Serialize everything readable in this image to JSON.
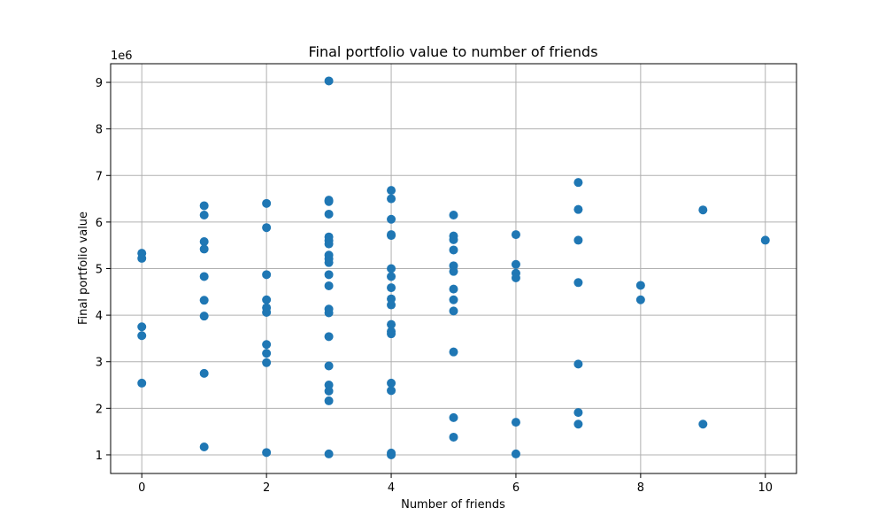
{
  "chart_data": {
    "type": "scatter",
    "title": "Final portfolio value to number of friends",
    "xlabel": "Number of friends",
    "ylabel": "Final portfolio value",
    "y_scale_label": "1e6",
    "xlim": [
      -0.5,
      10.5
    ],
    "ylim": [
      0.6,
      9.4
    ],
    "xticks": [
      0,
      2,
      4,
      6,
      8,
      10
    ],
    "yticks": [
      1,
      2,
      3,
      4,
      5,
      6,
      7,
      8,
      9
    ],
    "grid": true,
    "marker_color": "#1f77b4",
    "points": [
      {
        "x": 0,
        "y": 5.33
      },
      {
        "x": 0,
        "y": 5.22
      },
      {
        "x": 0,
        "y": 3.75
      },
      {
        "x": 0,
        "y": 3.56
      },
      {
        "x": 0,
        "y": 2.54
      },
      {
        "x": 1,
        "y": 6.35
      },
      {
        "x": 1,
        "y": 6.15
      },
      {
        "x": 1,
        "y": 5.58
      },
      {
        "x": 1,
        "y": 5.42
      },
      {
        "x": 1,
        "y": 4.83
      },
      {
        "x": 1,
        "y": 4.32
      },
      {
        "x": 1,
        "y": 3.98
      },
      {
        "x": 1,
        "y": 2.75
      },
      {
        "x": 1,
        "y": 1.17
      },
      {
        "x": 2,
        "y": 6.4
      },
      {
        "x": 2,
        "y": 5.88
      },
      {
        "x": 2,
        "y": 4.87
      },
      {
        "x": 2,
        "y": 4.33
      },
      {
        "x": 2,
        "y": 4.16
      },
      {
        "x": 2,
        "y": 4.06
      },
      {
        "x": 2,
        "y": 3.37
      },
      {
        "x": 2,
        "y": 3.18
      },
      {
        "x": 2,
        "y": 2.98
      },
      {
        "x": 2,
        "y": 1.05
      },
      {
        "x": 3,
        "y": 9.03
      },
      {
        "x": 3,
        "y": 6.47
      },
      {
        "x": 3,
        "y": 6.44
      },
      {
        "x": 3,
        "y": 6.17
      },
      {
        "x": 3,
        "y": 5.68
      },
      {
        "x": 3,
        "y": 5.6
      },
      {
        "x": 3,
        "y": 5.53
      },
      {
        "x": 3,
        "y": 5.29
      },
      {
        "x": 3,
        "y": 5.21
      },
      {
        "x": 3,
        "y": 5.13
      },
      {
        "x": 3,
        "y": 4.87
      },
      {
        "x": 3,
        "y": 4.63
      },
      {
        "x": 3,
        "y": 4.13
      },
      {
        "x": 3,
        "y": 4.05
      },
      {
        "x": 3,
        "y": 3.54
      },
      {
        "x": 3,
        "y": 2.91
      },
      {
        "x": 3,
        "y": 2.5
      },
      {
        "x": 3,
        "y": 2.37
      },
      {
        "x": 3,
        "y": 2.16
      },
      {
        "x": 3,
        "y": 1.02
      },
      {
        "x": 4,
        "y": 6.68
      },
      {
        "x": 4,
        "y": 6.5
      },
      {
        "x": 4,
        "y": 6.06
      },
      {
        "x": 4,
        "y": 5.73
      },
      {
        "x": 4,
        "y": 5.71
      },
      {
        "x": 4,
        "y": 5.0
      },
      {
        "x": 4,
        "y": 4.83
      },
      {
        "x": 4,
        "y": 4.59
      },
      {
        "x": 4,
        "y": 4.35
      },
      {
        "x": 4,
        "y": 4.22
      },
      {
        "x": 4,
        "y": 3.8
      },
      {
        "x": 4,
        "y": 3.65
      },
      {
        "x": 4,
        "y": 3.6
      },
      {
        "x": 4,
        "y": 2.54
      },
      {
        "x": 4,
        "y": 2.38
      },
      {
        "x": 4,
        "y": 1.04
      },
      {
        "x": 4,
        "y": 1.0
      },
      {
        "x": 5,
        "y": 6.15
      },
      {
        "x": 5,
        "y": 5.7
      },
      {
        "x": 5,
        "y": 5.62
      },
      {
        "x": 5,
        "y": 5.4
      },
      {
        "x": 5,
        "y": 5.06
      },
      {
        "x": 5,
        "y": 4.94
      },
      {
        "x": 5,
        "y": 4.56
      },
      {
        "x": 5,
        "y": 4.33
      },
      {
        "x": 5,
        "y": 4.09
      },
      {
        "x": 5,
        "y": 3.21
      },
      {
        "x": 5,
        "y": 1.8
      },
      {
        "x": 5,
        "y": 1.38
      },
      {
        "x": 6,
        "y": 5.73
      },
      {
        "x": 6,
        "y": 5.09
      },
      {
        "x": 6,
        "y": 4.9
      },
      {
        "x": 6,
        "y": 4.8
      },
      {
        "x": 6,
        "y": 1.7
      },
      {
        "x": 6,
        "y": 1.02
      },
      {
        "x": 7,
        "y": 6.85
      },
      {
        "x": 7,
        "y": 6.27
      },
      {
        "x": 7,
        "y": 5.61
      },
      {
        "x": 7,
        "y": 4.7
      },
      {
        "x": 7,
        "y": 2.95
      },
      {
        "x": 7,
        "y": 1.91
      },
      {
        "x": 7,
        "y": 1.66
      },
      {
        "x": 8,
        "y": 4.64
      },
      {
        "x": 8,
        "y": 4.33
      },
      {
        "x": 9,
        "y": 6.26
      },
      {
        "x": 9,
        "y": 1.66
      },
      {
        "x": 10,
        "y": 5.61
      }
    ]
  }
}
